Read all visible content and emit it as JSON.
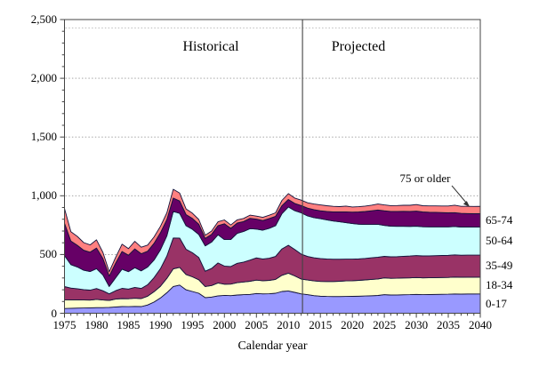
{
  "figure": {
    "historical_label": "Historical",
    "projected_label": "Projected",
    "callout_label": "75 or older"
  },
  "chart_data": {
    "type": "area",
    "stacked": true,
    "title": "",
    "xlabel": "Calendar year",
    "ylabel": "",
    "xlim": [
      1975,
      2040
    ],
    "ylim": [
      0,
      2500
    ],
    "grid": "dotted-horizontal",
    "grid_values": [
      500,
      1000,
      1500,
      2000
    ],
    "xtick_values": [
      1975,
      1980,
      1985,
      1990,
      1995,
      2000,
      2005,
      2010,
      2015,
      2020,
      2025,
      2030,
      2035,
      2040
    ],
    "ytick_values": [
      0,
      500,
      1000,
      1500,
      2000,
      2500
    ],
    "ytick_labels": [
      "0",
      "500",
      "1,000",
      "1,500",
      "2,000",
      "2,500"
    ],
    "minor_x_step": 1,
    "minor_y_step": 100,
    "divider_x": 2012.2,
    "region_split": {
      "left": "Historical",
      "right": "Projected"
    },
    "legend_position": "right-of-plot",
    "background": "#FFFFFF",
    "axis_color": "#444444",
    "grid_color": "#999999",
    "series_stroke": "#14143C",
    "annotation_color": "#333333",
    "series": [
      {
        "name": "0-17",
        "color": "#9999FF",
        "values": [
          40,
          42,
          44,
          45,
          46,
          48,
          48,
          50,
          54,
          57,
          56,
          58,
          57,
          70,
          95,
          130,
          175,
          228,
          240,
          200,
          185,
          170,
          133,
          138,
          148,
          152,
          150,
          155,
          158,
          160,
          168,
          165,
          166,
          170,
          185,
          190,
          178,
          165,
          158,
          150,
          145,
          143,
          142,
          142,
          143,
          144,
          145,
          147,
          149,
          151,
          158,
          155,
          156,
          157,
          158,
          160,
          158,
          159,
          160,
          161,
          162,
          164,
          163,
          164,
          164,
          165
        ]
      },
      {
        "name": "18-34",
        "color": "#FFFFCC",
        "values": [
          75,
          72,
          70,
          68,
          66,
          70,
          65,
          60,
          66,
          68,
          67,
          70,
          68,
          75,
          88,
          100,
          122,
          150,
          150,
          130,
          125,
          115,
          95,
          98,
          110,
          95,
          98,
          105,
          108,
          112,
          114,
          112,
          114,
          118,
          138,
          151,
          140,
          126,
          125,
          125,
          126,
          127,
          128,
          130,
          132,
          133,
          135,
          137,
          139,
          141,
          143,
          142,
          142,
          143,
          143,
          144,
          143,
          143,
          143,
          143,
          143,
          144,
          143,
          143,
          143,
          143
        ]
      },
      {
        "name": "35-49",
        "color": "#993366",
        "values": [
          113,
          100,
          95,
          88,
          85,
          92,
          78,
          55,
          72,
          87,
          83,
          92,
          86,
          98,
          120,
          150,
          190,
          263,
          250,
          215,
          205,
          190,
          130,
          145,
          170,
          155,
          150,
          165,
          170,
          180,
          189,
          185,
          188,
          195,
          225,
          238,
          225,
          213,
          200,
          197,
          195,
          192,
          190,
          188,
          186,
          184,
          183,
          183,
          184,
          185,
          183,
          183,
          184,
          185,
          186,
          187,
          187,
          187,
          187,
          188,
          188,
          189,
          188,
          188,
          188,
          188
        ]
      },
      {
        "name": "50-64",
        "color": "#CCFFFF",
        "values": [
          263,
          200,
          185,
          165,
          158,
          170,
          135,
          63,
          110,
          163,
          148,
          168,
          150,
          150,
          150,
          160,
          172,
          226,
          210,
          200,
          200,
          195,
          215,
          225,
          240,
          225,
          230,
          255,
          260,
          268,
          245,
          245,
          255,
          262,
          300,
          326,
          330,
          351,
          345,
          342,
          339,
          333,
          325,
          318,
          310,
          302,
          295,
          289,
          284,
          280,
          263,
          261,
          258,
          255,
          252,
          250,
          248,
          246,
          245,
          243,
          242,
          241,
          240,
          239,
          238,
          238
        ]
      },
      {
        "name": "65-74",
        "color": "#660066",
        "values": [
          276,
          200,
          185,
          170,
          165,
          175,
          140,
          88,
          125,
          151,
          140,
          160,
          146,
          135,
          142,
          145,
          138,
          113,
          105,
          95,
          92,
          88,
          64,
          66,
          78,
          135,
          95,
          88,
          85,
          88,
          85,
          82,
          83,
          80,
          68,
          63,
          62,
          62,
          67,
          68,
          67,
          72,
          78,
          84,
          92,
          98,
          104,
          110,
          116,
          122,
          125,
          126,
          127,
          128,
          128,
          128,
          126,
          125,
          124,
          122,
          120,
          118,
          116,
          115,
          114,
          113
        ]
      },
      {
        "name": "75 or older",
        "color": "#FF8080",
        "callout": true,
        "values": [
          125,
          80,
          75,
          65,
          62,
          70,
          52,
          37,
          48,
          62,
          56,
          64,
          55,
          52,
          55,
          55,
          58,
          75,
          68,
          48,
          45,
          40,
          27,
          28,
          32,
          32,
          28,
          27,
          26,
          27,
          26,
          27,
          28,
          30,
          45,
          50,
          45,
          46,
          45,
          48,
          50,
          48,
          47,
          46,
          49,
          44,
          45,
          46,
          48,
          51,
          50,
          49,
          50,
          51,
          52,
          56,
          53,
          54,
          55,
          56,
          58,
          64,
          60,
          61,
          62,
          63
        ]
      }
    ]
  }
}
